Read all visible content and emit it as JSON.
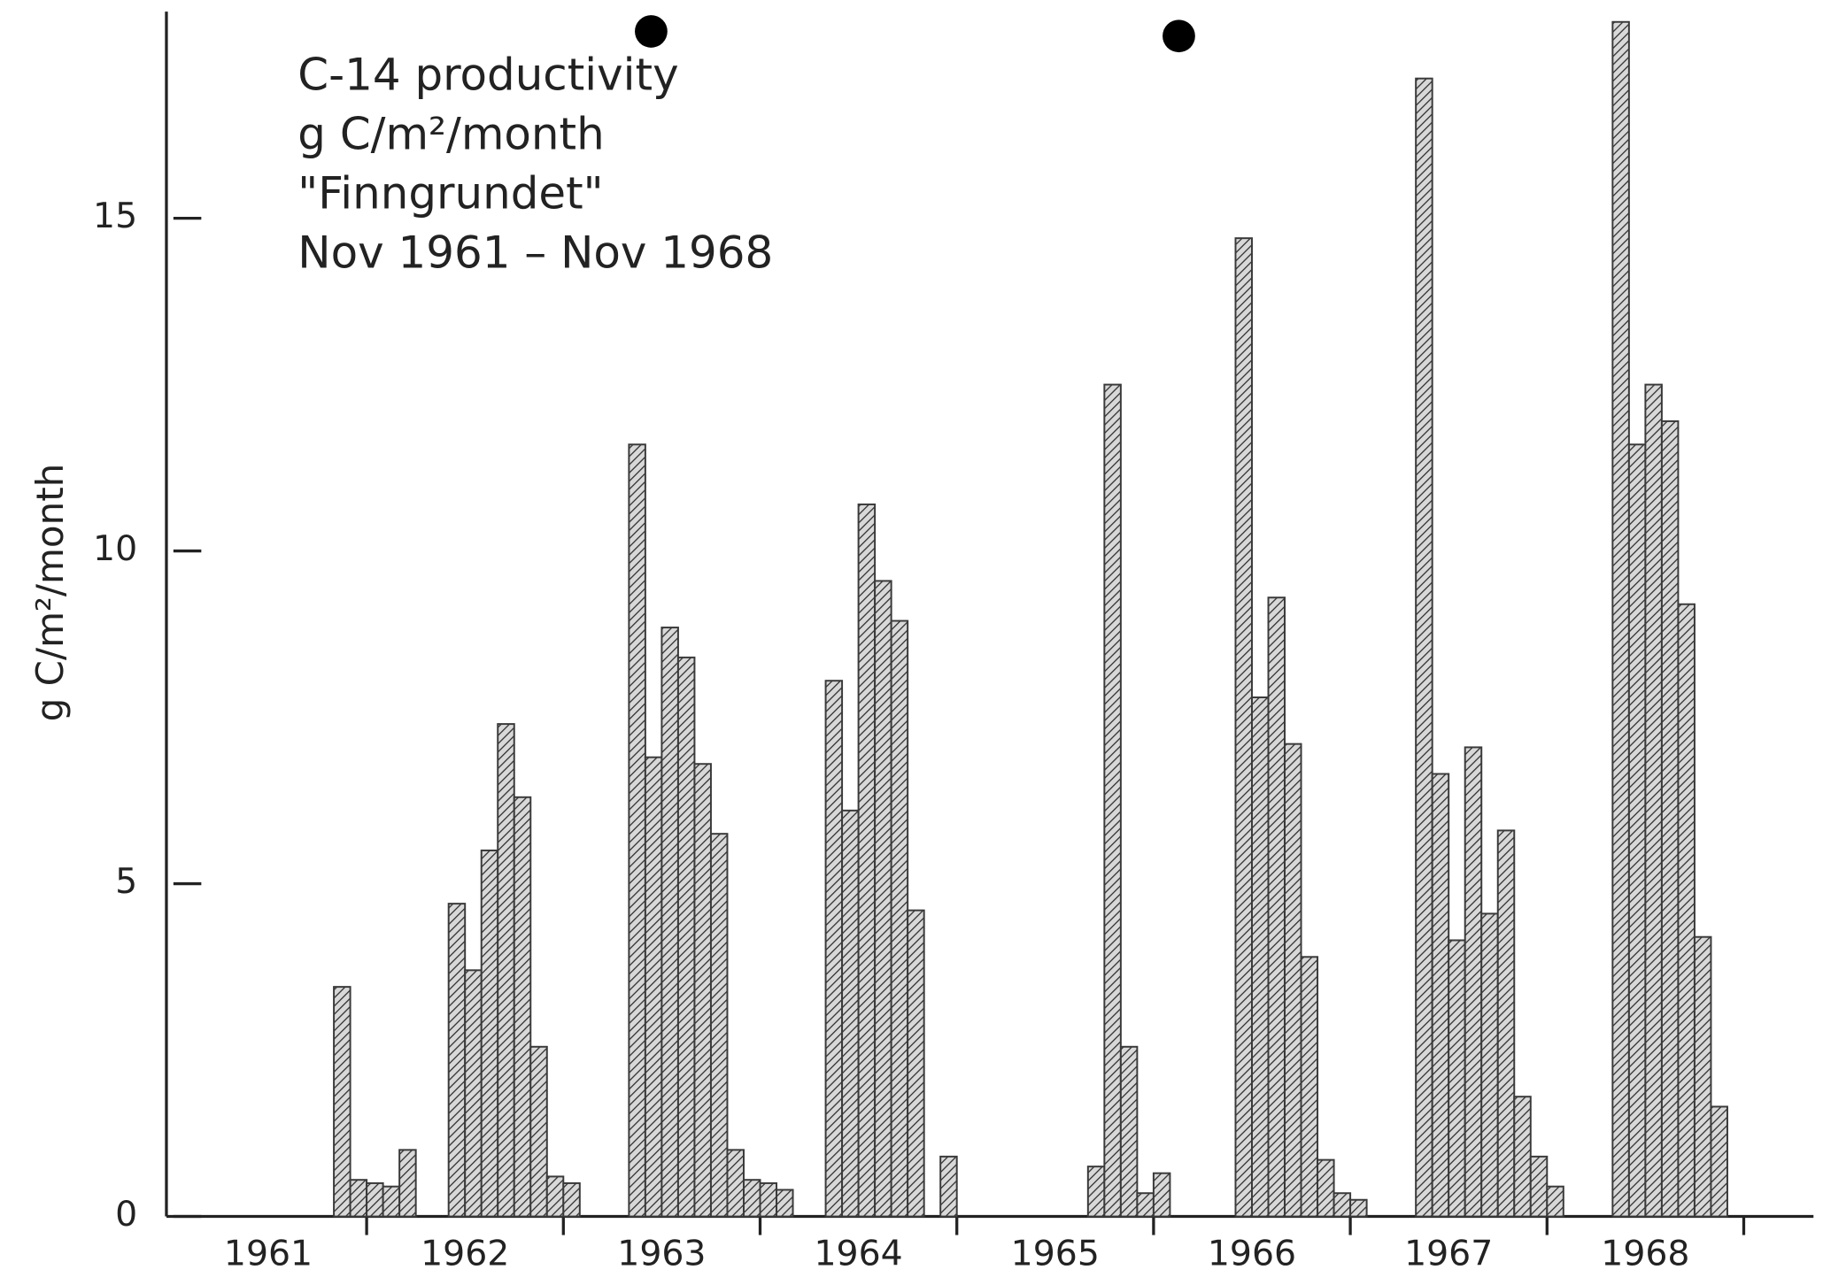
{
  "chart_data": {
    "type": "bar",
    "annotation": [
      "C-14 productivity",
      "g C/m²/month",
      "\"Finngrundet\"",
      "Nov 1961 – Nov 1968"
    ],
    "y_label": "g C/m²/month",
    "categories": [
      "1961",
      "1962",
      "1963",
      "1964",
      "1965",
      "1966",
      "1967",
      "1968"
    ],
    "values": [
      [
        null,
        null,
        null,
        null,
        null,
        null,
        null,
        null,
        null,
        null,
        3.45,
        0.55
      ],
      [
        0.5,
        0.45,
        1.0,
        null,
        null,
        4.7,
        3.7,
        5.5,
        7.4,
        6.3,
        2.55,
        0.6
      ],
      [
        0.5,
        null,
        null,
        null,
        11.6,
        6.9,
        8.85,
        8.4,
        6.8,
        5.75,
        1.0,
        0.55
      ],
      [
        0.5,
        0.4,
        null,
        null,
        8.05,
        6.1,
        10.7,
        9.55,
        8.95,
        4.6,
        null,
        0.9
      ],
      [
        null,
        null,
        null,
        null,
        null,
        null,
        null,
        null,
        0.75,
        12.5,
        2.55,
        0.35
      ],
      [
        0.65,
        null,
        null,
        null,
        null,
        14.7,
        7.8,
        9.3,
        7.1,
        3.9,
        0.85,
        0.35
      ],
      [
        0.25,
        null,
        null,
        null,
        17.1,
        6.65,
        4.15,
        7.05,
        4.55,
        5.8,
        1.8,
        0.9
      ],
      [
        0.45,
        null,
        null,
        null,
        17.95,
        11.6,
        12.5,
        11.95,
        9.2,
        4.2,
        1.65,
        null
      ]
    ],
    "color": "#3a3a3a",
    "ylim": [
      0,
      18
    ],
    "yticks": [
      0,
      5,
      10,
      15
    ],
    "grid": false
  }
}
